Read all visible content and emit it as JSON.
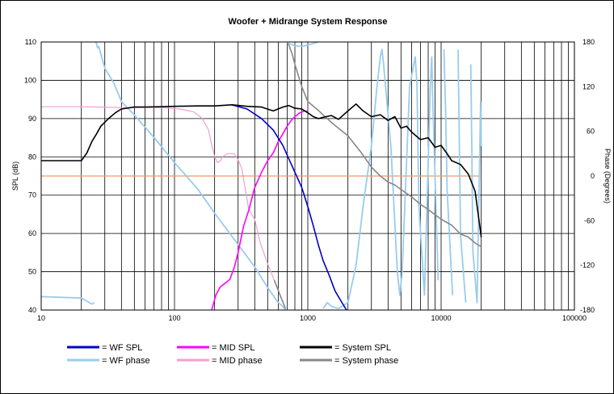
{
  "chart_data": {
    "type": "line",
    "title": "Woofer + Midrange System Response",
    "xlabel": "",
    "ylabel": "SPL (dB)",
    "y2label": "Phase (Degrees)",
    "x_scale": "log",
    "xlim": [
      10,
      100000
    ],
    "ylim": [
      40,
      110
    ],
    "y2lim": [
      -180,
      180
    ],
    "x_ticks": [
      "10",
      "100",
      "1000",
      "10000",
      "100000"
    ],
    "y_ticks": [
      "40",
      "50",
      "60",
      "70",
      "80",
      "90",
      "100",
      "110"
    ],
    "y2_ticks": [
      "-180",
      "-120",
      "-60",
      "0",
      "60",
      "120",
      "180"
    ],
    "grid": true,
    "legend_position": "bottom",
    "series": [
      {
        "name": "= WF SPL",
        "axis": "left",
        "color": "#0000c8",
        "width": 1.6,
        "x": [
          270,
          350,
          450,
          550,
          650,
          720,
          800,
          900,
          1000,
          1100,
          1200,
          1300,
          1450,
          1600,
          1800,
          1950
        ],
        "values": [
          93.6,
          92.5,
          90.0,
          87.0,
          83.0,
          79.5,
          76.0,
          72.0,
          67.0,
          62.0,
          57.0,
          53.0,
          49.0,
          45.0,
          42.0,
          40.0
        ]
      },
      {
        "name": "= WF phase",
        "axis": "right",
        "color": "#99ccee",
        "width": 1.8,
        "x": [
          10,
          20,
          24,
          25,
          25.5,
          26,
          26.5,
          27,
          30,
          35,
          40,
          50,
          70,
          100,
          150,
          200,
          300,
          400,
          500,
          600,
          650,
          680,
          700,
          720,
          800,
          900,
          1000,
          1100,
          1200,
          1300,
          1400,
          1500,
          1700,
          2000,
          2300,
          2600,
          3000,
          3300,
          3500,
          3600,
          3700,
          4200,
          4700,
          4900,
          5100,
          5800,
          6400,
          6600,
          6800,
          7500,
          8300,
          8500,
          8700,
          9500,
          10500,
          10800,
          11100,
          12200,
          13400,
          13700,
          14000,
          15300,
          16700,
          17000,
          17300,
          18600,
          19800,
          20000
        ],
        "values": [
          -162,
          -164,
          -172,
          -170,
          180,
          178,
          172,
          174,
          145,
          125,
          100,
          82,
          52,
          18,
          -18,
          -50,
          -92,
          -122,
          -150,
          -170,
          -175,
          -180,
          180,
          178,
          175,
          174,
          176,
          178,
          180,
          -178,
          -170,
          -175,
          -178,
          -170,
          -120,
          -40,
          40,
          120,
          160,
          170,
          150,
          40,
          -130,
          -160,
          -130,
          120,
          160,
          120,
          -40,
          -160,
          120,
          160,
          90,
          -140,
          170,
          90,
          -20,
          -160,
          170,
          40,
          -80,
          -170,
          150,
          40,
          -100,
          -170,
          100,
          40
        ]
      },
      {
        "name": "= MID SPL",
        "axis": "left",
        "color": "#ff00ff",
        "width": 1.6,
        "x": [
          190,
          205,
          220,
          240,
          260,
          280,
          300,
          330,
          360,
          400,
          450,
          500,
          550,
          600,
          650,
          700,
          750,
          800,
          870,
          950,
          1000
        ],
        "values": [
          40.0,
          44.0,
          46.0,
          47.0,
          48.0,
          51.0,
          55.0,
          62.0,
          66.0,
          72.0,
          76.0,
          79.0,
          81.0,
          84.0,
          86.0,
          88.0,
          89.5,
          90.5,
          91.5,
          92.0,
          91.8
        ]
      },
      {
        "name": "= MID phase",
        "axis": "right",
        "color": "#f0a0d0",
        "width": 1.2,
        "x": [
          10,
          20,
          40,
          80,
          110,
          140,
          160,
          180,
          190,
          200,
          210,
          220,
          230,
          250,
          280,
          300,
          320,
          340,
          360,
          380,
          400,
          440,
          500,
          560,
          620,
          680,
          700,
          720,
          760,
          800,
          900,
          1000,
          1200,
          1500,
          2000,
          2500,
          3000,
          3500,
          4000,
          4500,
          5000,
          6000,
          7000,
          8000,
          9000,
          10000,
          12000,
          14000,
          16000,
          18000,
          20000
        ],
        "values": [
          93,
          93,
          92,
          92,
          90,
          86,
          78,
          62,
          42,
          26,
          18,
          20,
          26,
          30,
          30,
          22,
          10,
          -18,
          -44,
          -52,
          -58,
          -90,
          -118,
          -140,
          -160,
          -178,
          178,
          176,
          165,
          150,
          120,
          100,
          88,
          72,
          54,
          32,
          12,
          0,
          -8,
          -12,
          -18,
          -28,
          -38,
          -45,
          -52,
          -58,
          -66,
          -78,
          -82,
          -90,
          -95
        ]
      },
      {
        "name": "= System SPL",
        "axis": "left",
        "color": "#000000",
        "width": 1.6,
        "x": [
          10,
          20,
          22,
          24,
          26,
          28,
          32,
          36,
          40,
          50,
          60,
          80,
          100,
          150,
          200,
          270,
          350,
          450,
          550,
          650,
          720,
          800,
          900,
          1000,
          1100,
          1200,
          1300,
          1500,
          1700,
          2000,
          2300,
          2600,
          3000,
          3500,
          4000,
          4500,
          5000,
          5500,
          6000,
          7000,
          8000,
          9000,
          10000,
          11000,
          12000,
          14000,
          16000,
          18000,
          20000
        ],
        "values": [
          79.0,
          79.0,
          81.0,
          84.0,
          86.0,
          88.0,
          90.0,
          91.5,
          92.5,
          93.0,
          93.0,
          93.1,
          93.2,
          93.3,
          93.3,
          93.6,
          93.2,
          93.0,
          92.0,
          93.0,
          93.4,
          92.7,
          92.5,
          91.5,
          90.5,
          90.0,
          90.3,
          90.8,
          89.8,
          92.0,
          93.8,
          92.0,
          90.5,
          91.0,
          89.5,
          90.5,
          87.5,
          88.0,
          86.5,
          84.5,
          85.0,
          82.5,
          83.0,
          81.0,
          79.0,
          78.0,
          75.5,
          71.0,
          59.0
        ]
      },
      {
        "name": "= System phase",
        "axis": "right",
        "color": "#888888",
        "width": 1.6,
        "x": [
          560,
          620,
          680,
          700,
          720,
          760,
          800,
          900,
          1000,
          1200,
          1500,
          2000,
          2500,
          3000,
          3500,
          4000,
          4500,
          5000,
          6000,
          7000,
          8000,
          9000,
          10000,
          12000,
          14000,
          16000,
          18000,
          20000
        ],
        "values": [
          -140,
          -160,
          -178,
          178,
          176,
          165,
          150,
          120,
          100,
          88,
          72,
          54,
          32,
          12,
          0,
          -8,
          -12,
          -18,
          -28,
          -38,
          -45,
          -52,
          -58,
          -66,
          -78,
          -82,
          -90,
          -95
        ]
      },
      {
        "name": "",
        "axis": "left",
        "color": "#ee9966",
        "width": 1.2,
        "x": [
          10,
          20000
        ],
        "values": [
          75,
          75
        ]
      }
    ]
  }
}
